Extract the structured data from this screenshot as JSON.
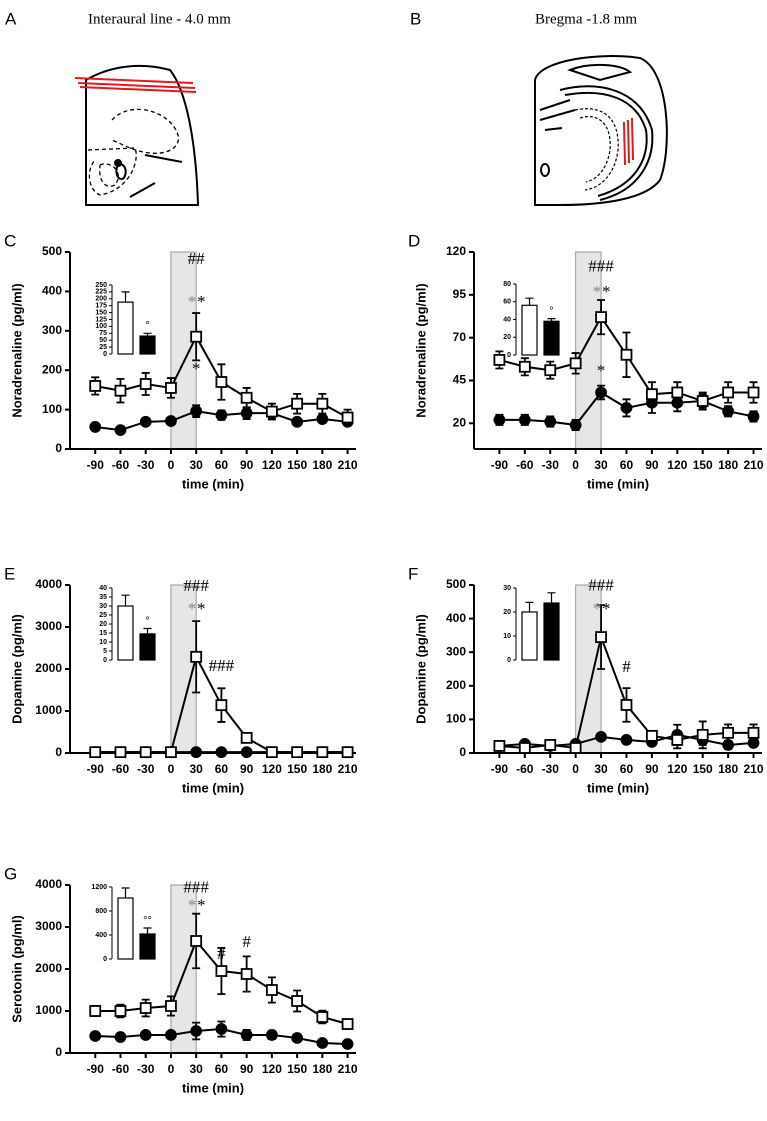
{
  "diagrams": [
    {
      "label": "A",
      "title": "Interaural line - 4.0 mm"
    },
    {
      "label": "B",
      "title": "Bregma -1.8 mm"
    }
  ],
  "chart_data": [
    {
      "type": "line",
      "label": "C",
      "ylabel": "Noradrenaline (pg/ml)",
      "xlabel": "time (min)",
      "x": [
        -90,
        -60,
        -30,
        0,
        30,
        60,
        90,
        120,
        150,
        180,
        210
      ],
      "xlim": [
        -120,
        220
      ],
      "xticks": [
        -90,
        -60,
        -30,
        0,
        30,
        60,
        90,
        120,
        150,
        180,
        210
      ],
      "ylim": [
        0,
        500
      ],
      "yticks": [
        0,
        100,
        200,
        300,
        400,
        500
      ],
      "shade": [
        0,
        30
      ],
      "series": [
        {
          "marker": "square",
          "color": "#000000",
          "fill": "#ffffff",
          "values": [
            160,
            148,
            165,
            155,
            285,
            170,
            130,
            95,
            115,
            115,
            80
          ],
          "errors": [
            22,
            30,
            28,
            25,
            60,
            45,
            25,
            20,
            25,
            25,
            20
          ]
        },
        {
          "marker": "circle",
          "color": "#000000",
          "fill": "#000000",
          "values": [
            56,
            48,
            69,
            71,
            96,
            86,
            91,
            91,
            69,
            76,
            69
          ],
          "errors": [
            6,
            6,
            6,
            6,
            15,
            12,
            15,
            15,
            8,
            8,
            8
          ]
        }
      ],
      "annotations": [
        {
          "text": "##",
          "x": 30,
          "y": 480,
          "color": "#000000"
        },
        {
          "text": "*",
          "x": 25,
          "y": 370,
          "color": "#888888"
        },
        {
          "text": "*",
          "x": 36,
          "y": 370,
          "color": "#000000"
        },
        {
          "text": "*",
          "x": 30,
          "y": 200,
          "color": "#000000"
        }
      ],
      "inset": {
        "type": "bar",
        "values": [
          188,
          65
        ],
        "errors": [
          37,
          10
        ],
        "colors": [
          "#ffffff",
          "#000000"
        ],
        "ylim": [
          0,
          250
        ],
        "yticks": [
          0,
          25,
          50,
          75,
          100,
          125,
          150,
          175,
          200,
          225,
          250
        ],
        "annotation": "°"
      }
    },
    {
      "type": "line",
      "label": "D",
      "ylabel": "Noradrenaline (pg/ml)",
      "xlabel": "time (min)",
      "x": [
        -90,
        -60,
        -30,
        0,
        30,
        60,
        90,
        120,
        150,
        180,
        210
      ],
      "xlim": [
        -120,
        220
      ],
      "xticks": [
        -90,
        -60,
        -30,
        0,
        30,
        60,
        90,
        120,
        150,
        180,
        210
      ],
      "ylim": [
        5,
        120
      ],
      "yticks": [
        20,
        45,
        70,
        95,
        120
      ],
      "shade": [
        0,
        30
      ],
      "series": [
        {
          "marker": "square",
          "color": "#000000",
          "fill": "#ffffff",
          "values": [
            57,
            53,
            51,
            55,
            82,
            60,
            37,
            38,
            33,
            38,
            38
          ],
          "errors": [
            5,
            5,
            5,
            6,
            10,
            13,
            7,
            6,
            5,
            6,
            6
          ]
        },
        {
          "marker": "circle",
          "color": "#000000",
          "fill": "#000000",
          "values": [
            22,
            22,
            21,
            19,
            38,
            29,
            32,
            32,
            33,
            27,
            24
          ],
          "errors": [
            3,
            3,
            3,
            3,
            4,
            5,
            6,
            5,
            4,
            3,
            3
          ]
        }
      ],
      "annotations": [
        {
          "text": "###",
          "x": 30,
          "y": 111,
          "color": "#000000"
        },
        {
          "text": "*",
          "x": 25,
          "y": 96,
          "color": "#888888"
        },
        {
          "text": "*",
          "x": 36,
          "y": 96,
          "color": "#000000"
        },
        {
          "text": "*",
          "x": 30,
          "y": 50,
          "color": "#000000"
        }
      ],
      "inset": {
        "type": "bar",
        "values": [
          56,
          38
        ],
        "errors": [
          8,
          3
        ],
        "colors": [
          "#ffffff",
          "#000000"
        ],
        "ylim": [
          0,
          80
        ],
        "yticks": [
          0,
          20,
          40,
          60,
          80
        ],
        "annotation": "°"
      }
    },
    {
      "type": "line",
      "label": "E",
      "ylabel": "Dopamine (pg/ml)",
      "xlabel": "time (min)",
      "x": [
        -90,
        -60,
        -30,
        0,
        30,
        60,
        90,
        120,
        150,
        180,
        210
      ],
      "xlim": [
        -120,
        220
      ],
      "xticks": [
        -90,
        -60,
        -30,
        0,
        30,
        60,
        90,
        120,
        150,
        180,
        210
      ],
      "ylim": [
        0,
        4000
      ],
      "yticks": [
        0,
        1000,
        2000,
        3000,
        4000
      ],
      "shade": [
        0,
        30
      ],
      "series": [
        {
          "marker": "square",
          "color": "#000000",
          "fill": "#ffffff",
          "values": [
            20,
            20,
            20,
            20,
            2290,
            1140,
            360,
            20,
            20,
            20,
            20
          ],
          "errors": [
            10,
            10,
            10,
            10,
            850,
            400,
            30,
            10,
            10,
            10,
            10
          ]
        },
        {
          "marker": "circle",
          "color": "#000000",
          "fill": "#000000",
          "values": [
            20,
            20,
            20,
            20,
            20,
            20,
            20,
            20,
            20,
            20,
            20
          ],
          "errors": [
            5,
            5,
            5,
            5,
            5,
            5,
            5,
            5,
            5,
            5,
            5
          ]
        }
      ],
      "annotations": [
        {
          "text": "###",
          "x": 30,
          "y": 3950,
          "color": "#000000"
        },
        {
          "text": "*",
          "x": 25,
          "y": 3400,
          "color": "#888888"
        },
        {
          "text": "*",
          "x": 36,
          "y": 3400,
          "color": "#000000"
        },
        {
          "text": "###",
          "x": 60,
          "y": 2050,
          "color": "#000000"
        }
      ],
      "inset": {
        "type": "bar",
        "values": [
          30,
          14.5
        ],
        "errors": [
          6,
          3
        ],
        "colors": [
          "#ffffff",
          "#000000"
        ],
        "ylim": [
          0,
          40
        ],
        "yticks": [
          0,
          5,
          10,
          15,
          20,
          25,
          30,
          35,
          40
        ],
        "annotation": "°"
      }
    },
    {
      "type": "line",
      "label": "F",
      "ylabel": "Dopamine (pg/ml)",
      "xlabel": "time (min)",
      "x": [
        -90,
        -60,
        -30,
        0,
        30,
        60,
        90,
        120,
        150,
        180,
        210
      ],
      "xlim": [
        -120,
        220
      ],
      "xticks": [
        -90,
        -60,
        -30,
        0,
        30,
        60,
        90,
        120,
        150,
        180,
        210
      ],
      "ylim": [
        0,
        500
      ],
      "yticks": [
        0,
        100,
        200,
        300,
        400,
        500
      ],
      "shade": [
        0,
        30
      ],
      "series": [
        {
          "marker": "square",
          "color": "#000000",
          "fill": "#ffffff",
          "values": [
            21,
            15,
            24,
            15,
            345,
            143,
            51,
            39,
            54,
            60,
            60
          ],
          "errors": [
            5,
            5,
            8,
            5,
            95,
            50,
            12,
            25,
            40,
            25,
            25
          ]
        },
        {
          "marker": "circle",
          "color": "#000000",
          "fill": "#000000",
          "values": [
            21,
            27,
            21,
            27,
            48,
            39,
            33,
            54,
            39,
            24,
            30
          ],
          "errors": [
            5,
            5,
            5,
            5,
            8,
            5,
            8,
            30,
            15,
            12,
            10
          ]
        }
      ],
      "annotations": [
        {
          "text": "###",
          "x": 30,
          "y": 495,
          "color": "#000000"
        },
        {
          "text": "*",
          "x": 25,
          "y": 425,
          "color": "#888888"
        },
        {
          "text": "*",
          "x": 36,
          "y": 425,
          "color": "#000000"
        },
        {
          "text": "#",
          "x": 60,
          "y": 253,
          "color": "#000000"
        }
      ],
      "inset": {
        "type": "bar",
        "values": [
          20,
          23.75
        ],
        "errors": [
          4,
          4.25
        ],
        "colors": [
          "#ffffff",
          "#000000"
        ],
        "ylim": [
          0,
          30
        ],
        "yticks": [
          0,
          10,
          20,
          30
        ]
      }
    },
    {
      "type": "line",
      "label": "G",
      "ylabel": "Serotonin (pg/ml)",
      "xlabel": "time (min)",
      "x": [
        -90,
        -60,
        -30,
        0,
        30,
        60,
        90,
        120,
        150,
        180,
        210
      ],
      "xlim": [
        -120,
        220
      ],
      "xticks": [
        -90,
        -60,
        -30,
        0,
        30,
        60,
        90,
        120,
        150,
        180,
        210
      ],
      "ylim": [
        0,
        4000
      ],
      "yticks": [
        0,
        1000,
        2000,
        3000,
        4000
      ],
      "shade": [
        0,
        30
      ],
      "series": [
        {
          "marker": "square",
          "color": "#000000",
          "fill": "#ffffff",
          "values": [
            1000,
            1000,
            1071,
            1119,
            2667,
            1952,
            1881,
            1500,
            1238,
            857,
            690
          ],
          "errors": [
            120,
            150,
            200,
            230,
            650,
            550,
            420,
            300,
            250,
            150,
            60
          ]
        },
        {
          "marker": "circle",
          "color": "#000000",
          "fill": "#000000",
          "values": [
            405,
            380,
            430,
            430,
            524,
            570,
            430,
            430,
            357,
            238,
            214
          ],
          "errors": [
            50,
            50,
            50,
            60,
            200,
            180,
            120,
            100,
            50,
            40,
            30
          ]
        }
      ],
      "annotations": [
        {
          "text": "###",
          "x": 30,
          "y": 3920,
          "color": "#000000"
        },
        {
          "text": "*",
          "x": 25,
          "y": 3480,
          "color": "#888888"
        },
        {
          "text": "*",
          "x": 36,
          "y": 3480,
          "color": "#000000"
        },
        {
          "text": "#",
          "x": 60,
          "y": 2330,
          "color": "#000000"
        },
        {
          "text": "#",
          "x": 90,
          "y": 2620,
          "color": "#000000"
        }
      ],
      "inset": {
        "type": "bar",
        "values": [
          1017,
          417
        ],
        "errors": [
          166,
          100
        ],
        "colors": [
          "#ffffff",
          "#000000"
        ],
        "ylim": [
          0,
          1200
        ],
        "yticks": [
          0,
          400,
          800,
          1200
        ],
        "annotation": "°°"
      }
    }
  ]
}
